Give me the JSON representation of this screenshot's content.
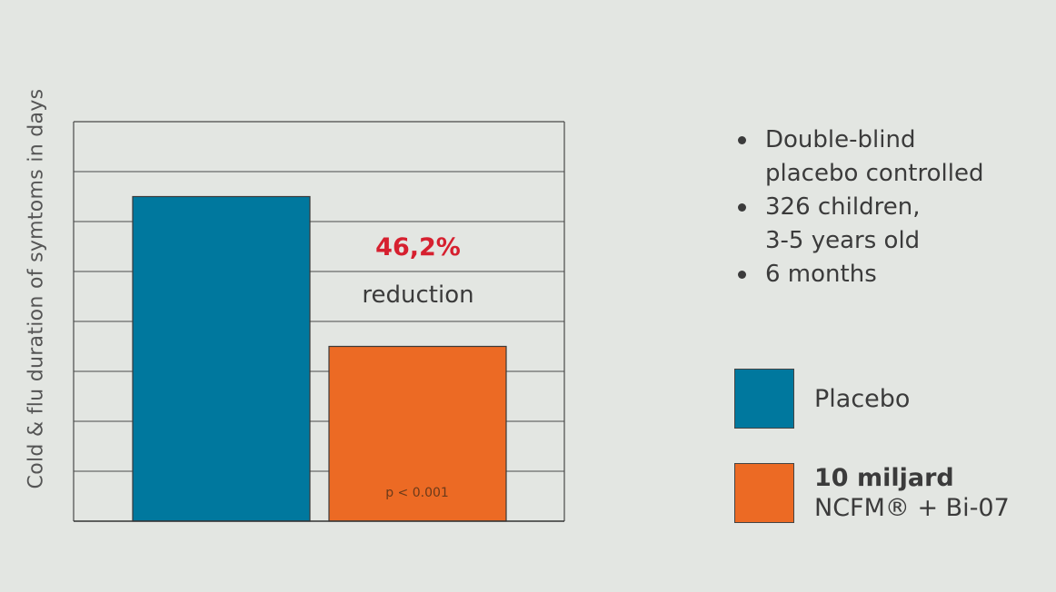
{
  "chart_data": {
    "type": "bar",
    "categories": [
      "Placebo",
      "10 miljard NCFM® + Bi-07"
    ],
    "values": [
      6.5,
      3.5
    ],
    "ylabel": "Cold & flu duration of symtoms in days",
    "ylim": [
      0,
      8
    ],
    "grid": true,
    "colors": [
      "#00789e",
      "#ec6a24"
    ],
    "annotations": {
      "reduction_pct": "46,2%",
      "reduction_word": "reduction",
      "p_value": "p < 0.001"
    }
  },
  "bullets": [
    {
      "lines": [
        "Double-blind",
        "placebo controlled"
      ]
    },
    {
      "lines": [
        "326 children,",
        "3-5 years old"
      ]
    },
    {
      "lines": [
        "6 months"
      ]
    }
  ],
  "legend": [
    {
      "label": "Placebo",
      "sub": "",
      "color": "#00789e"
    },
    {
      "label": "10 miljard",
      "sub": "NCFM® + Bi-07",
      "color": "#ec6a24"
    }
  ]
}
